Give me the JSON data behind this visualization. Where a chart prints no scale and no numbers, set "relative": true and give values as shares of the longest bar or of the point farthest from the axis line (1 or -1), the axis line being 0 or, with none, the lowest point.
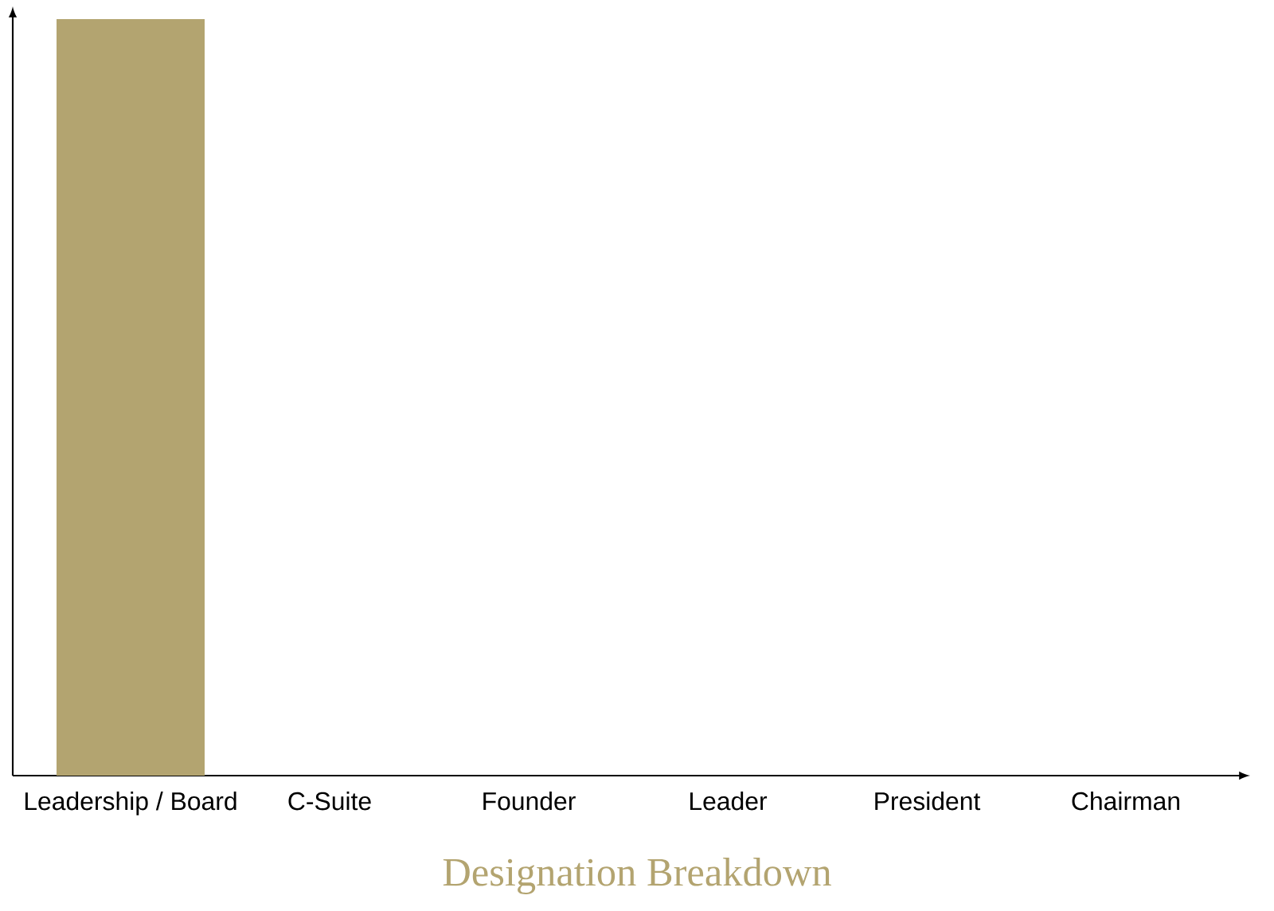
{
  "chart_data": {
    "type": "bar",
    "title": "Designation Breakdown",
    "categories": [
      "Leadership / Board",
      "C-Suite",
      "Founder",
      "Leader",
      "President",
      "Chairman"
    ],
    "values": [
      1,
      0,
      0,
      0,
      0,
      0
    ],
    "color": "#b3a470",
    "relative": true
  }
}
